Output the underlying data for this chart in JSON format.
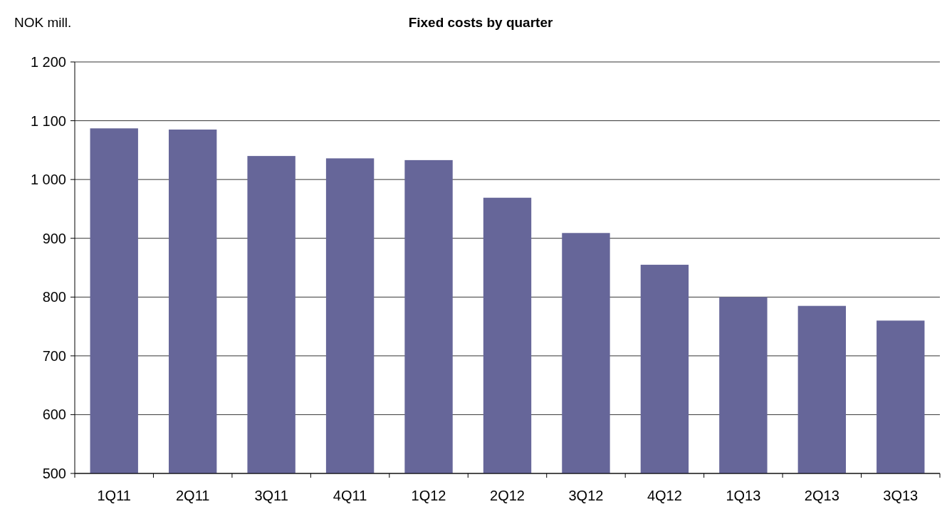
{
  "chart_data": {
    "type": "bar",
    "title": "Fixed costs by quarter",
    "ylabel": "NOK mill.",
    "categories": [
      "1Q11",
      "2Q11",
      "3Q11",
      "4Q11",
      "1Q12",
      "2Q12",
      "3Q12",
      "4Q12",
      "1Q13",
      "2Q13",
      "3Q13"
    ],
    "values": [
      1087,
      1085,
      1040,
      1036,
      1033,
      969,
      909,
      855,
      800,
      785,
      760
    ],
    "color": "#666699",
    "ylim": [
      500,
      1200
    ],
    "yticks": [
      500,
      600,
      700,
      800,
      900,
      {
        "value": 1000,
        "label": "1 000"
      },
      {
        "value": 1100,
        "label": "1 100"
      },
      {
        "value": 1200,
        "label": "1 200"
      }
    ],
    "grid": "y"
  }
}
